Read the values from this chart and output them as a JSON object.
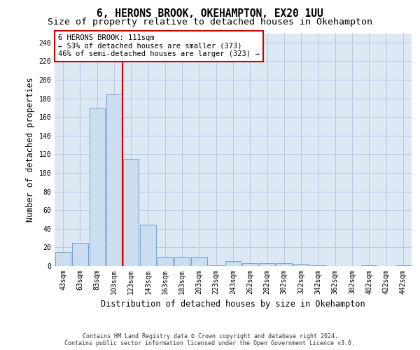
{
  "title": "6, HERONS BROOK, OKEHAMPTON, EX20 1UU",
  "subtitle": "Size of property relative to detached houses in Okehampton",
  "xlabel": "Distribution of detached houses by size in Okehampton",
  "ylabel": "Number of detached properties",
  "footer_line1": "Contains HM Land Registry data © Crown copyright and database right 2024.",
  "footer_line2": "Contains public sector information licensed under the Open Government Licence v3.0.",
  "bar_labels": [
    "43sqm",
    "63sqm",
    "83sqm",
    "103sqm",
    "123sqm",
    "143sqm",
    "163sqm",
    "183sqm",
    "203sqm",
    "223sqm",
    "243sqm",
    "262sqm",
    "282sqm",
    "302sqm",
    "322sqm",
    "342sqm",
    "362sqm",
    "382sqm",
    "402sqm",
    "422sqm",
    "442sqm"
  ],
  "bar_values": [
    15,
    25,
    170,
    185,
    115,
    44,
    10,
    10,
    10,
    1,
    5,
    3,
    3,
    3,
    2,
    1,
    0,
    0,
    1,
    0,
    1
  ],
  "bar_color": "#ccddf0",
  "bar_edge_color": "#6699cc",
  "vline_color": "#cc0000",
  "vline_x": 3.5,
  "annotation_text": "6 HERONS BROOK: 111sqm\n← 53% of detached houses are smaller (373)\n46% of semi-detached houses are larger (323) →",
  "annotation_box_color": "#ffffff",
  "annotation_box_edge": "#cc0000",
  "ylim": [
    0,
    250
  ],
  "yticks": [
    0,
    20,
    40,
    60,
    80,
    100,
    120,
    140,
    160,
    180,
    200,
    220,
    240
  ],
  "grid_color": "#b8c8e0",
  "bg_color": "#dde8f5",
  "title_fontsize": 10.5,
  "subtitle_fontsize": 9.5,
  "axis_label_fontsize": 8.5,
  "tick_fontsize": 7,
  "annotation_fontsize": 7.5,
  "footer_fontsize": 6
}
